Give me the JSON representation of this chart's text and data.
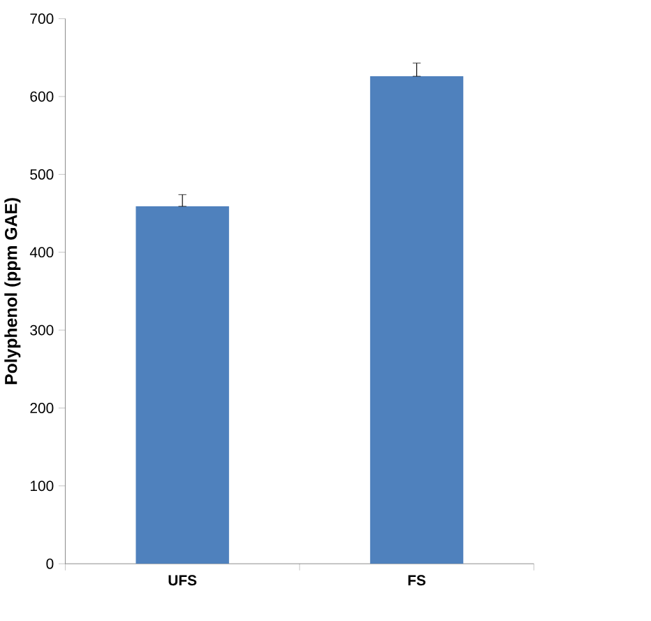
{
  "chart_data": {
    "type": "bar",
    "ylabel": "Polyphenol (ppm GAE)",
    "categories": [
      "UFS",
      "FS"
    ],
    "values": [
      459,
      626
    ],
    "errors": [
      [
        459,
        474
      ],
      [
        626,
        643
      ]
    ],
    "color": "#4f81bd",
    "ylim": [
      0,
      700
    ],
    "yticks": [
      0,
      100,
      200,
      300,
      400,
      500,
      600,
      700
    ],
    "grid": false
  }
}
